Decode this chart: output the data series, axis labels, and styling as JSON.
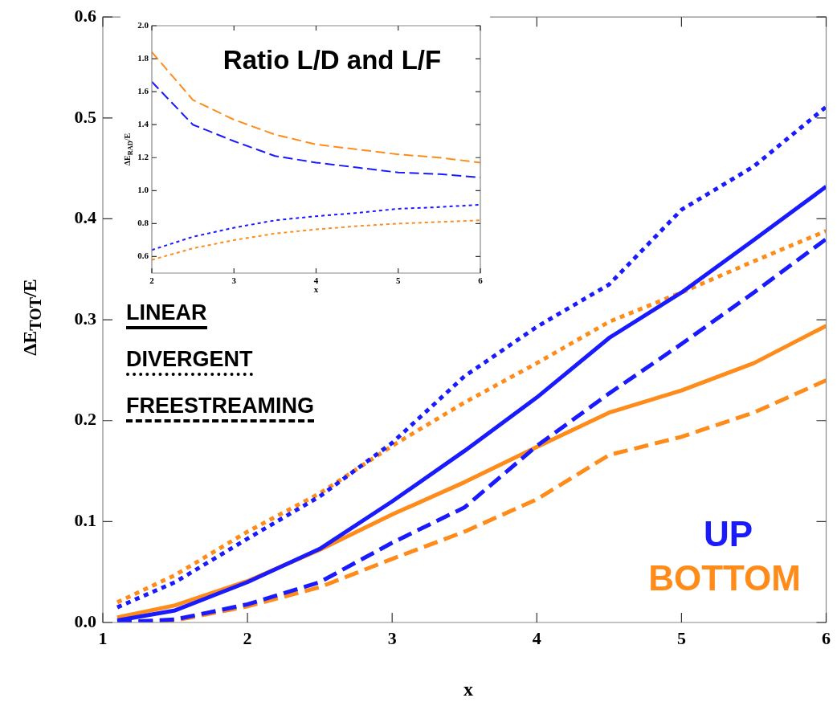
{
  "chart_data": [
    {
      "type": "line",
      "xlabel": "x",
      "ylabel": "ΔE$_{TOT}$/E",
      "xlim": [
        1,
        6
      ],
      "ylim": [
        0,
        0.6
      ],
      "xticks": [
        1,
        2,
        3,
        4,
        5,
        6
      ],
      "yticks": [
        {
          "value": 0,
          "label": "0.0"
        },
        {
          "value": 0.1,
          "label": "0.1"
        },
        {
          "value": 0.2,
          "label": "0.2"
        },
        {
          "value": 0.3,
          "label": "0.3"
        },
        {
          "value": 0.4,
          "label": "0.4"
        },
        {
          "value": 0.5,
          "label": "0.5"
        },
        {
          "value": 0.6,
          "label": "0.6"
        }
      ],
      "grid": false,
      "legend": false,
      "marker": "none",
      "x": [
        1.1,
        1.5,
        2,
        2.5,
        3,
        3.5,
        4,
        4.5,
        5,
        5.5,
        6
      ],
      "series": [
        {
          "color": "#1a1aff",
          "line_style": "solid",
          "values": [
            0.002,
            0.012,
            0.04,
            0.073,
            0.12,
            0.17,
            0.223,
            0.282,
            0.327,
            0.379,
            0.432
          ]
        },
        {
          "color": "#1a1aff",
          "line_style": "dotted",
          "values": [
            0.015,
            0.04,
            0.083,
            0.125,
            0.178,
            0.244,
            0.293,
            0.335,
            0.409,
            0.452,
            0.511
          ]
        },
        {
          "color": "#1a1aff",
          "line_style": "dashed",
          "values": [
            0,
            0.003,
            0.018,
            0.04,
            0.079,
            0.114,
            0.175,
            0.227,
            0.276,
            0.327,
            0.38
          ]
        },
        {
          "color": "#ff8c1a",
          "line_style": "solid",
          "values": [
            0.005,
            0.017,
            0.041,
            0.072,
            0.107,
            0.139,
            0.174,
            0.208,
            0.23,
            0.257,
            0.294
          ]
        },
        {
          "color": "#ff8c1a",
          "line_style": "dotted",
          "values": [
            0.02,
            0.047,
            0.09,
            0.128,
            0.175,
            0.218,
            0.257,
            0.298,
            0.327,
            0.358,
            0.388
          ]
        },
        {
          "color": "#ff8c1a",
          "line_style": "dashed",
          "values": [
            0,
            0.002,
            0.016,
            0.035,
            0.063,
            0.09,
            0.122,
            0.166,
            0.184,
            0.208,
            0.24
          ]
        }
      ],
      "annotations": [
        "LINEAR",
        "DIVERGENT",
        "FREESTREAMING",
        "UP",
        "BOTTOM"
      ]
    },
    {
      "type": "line",
      "title": "Ratio L/D and L/F",
      "xlabel": "x",
      "ylabel": "ΔE$_{RAD}$/E",
      "xlim": [
        2,
        6
      ],
      "ylim": [
        0.5,
        2.0
      ],
      "xticks": [
        2,
        3,
        4,
        5,
        6
      ],
      "yticks": [
        0.6,
        0.8,
        {
          "value": 1,
          "label": "1.0"
        },
        1.2,
        1.4,
        1.6,
        1.8,
        {
          "value": 2,
          "label": "2.0"
        }
      ],
      "grid": false,
      "legend": false,
      "marker": "none",
      "x": [
        2,
        2.5,
        3,
        3.5,
        4,
        4.5,
        5,
        5.5,
        6
      ],
      "series": [
        {
          "color": "#1a1aff",
          "line_style": "dashed",
          "values": [
            1.66,
            1.4,
            1.3,
            1.21,
            1.17,
            1.14,
            1.11,
            1.1,
            1.08
          ]
        },
        {
          "color": "#1a1aff",
          "line_style": "dotted",
          "values": [
            0.64,
            0.72,
            0.775,
            0.82,
            0.845,
            0.865,
            0.89,
            0.9,
            0.915
          ]
        },
        {
          "color": "#ff8c1a",
          "line_style": "dashed",
          "values": [
            1.84,
            1.55,
            1.43,
            1.34,
            1.28,
            1.25,
            1.22,
            1.2,
            1.17
          ]
        },
        {
          "color": "#ff8c1a",
          "line_style": "dotted",
          "values": [
            0.58,
            0.65,
            0.7,
            0.74,
            0.765,
            0.785,
            0.8,
            0.81,
            0.82
          ]
        }
      ]
    }
  ]
}
